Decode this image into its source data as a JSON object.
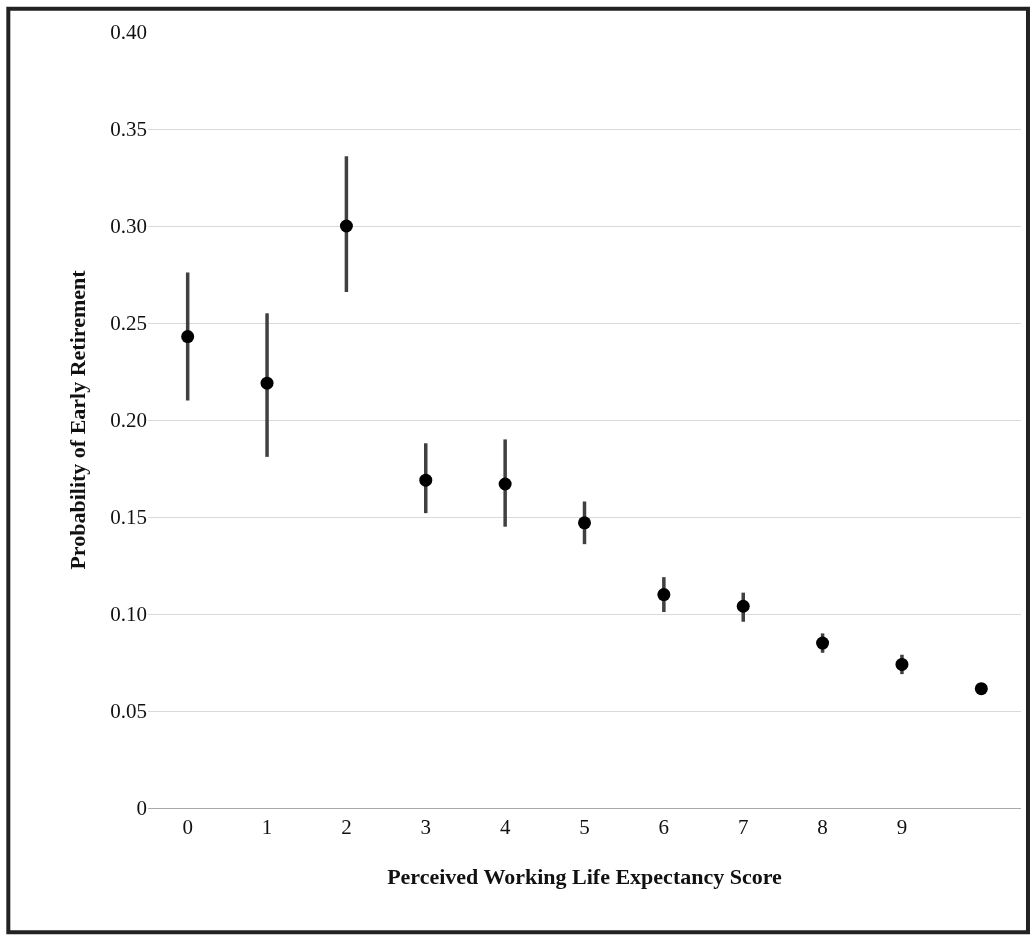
{
  "chart_data": {
    "type": "scatter",
    "xlabel": "Perceived Working Life Expectancy Score",
    "ylabel": "Probability of Early Retirement",
    "categories": [
      "0",
      "1",
      "2",
      "3",
      "4",
      "5",
      "6",
      "7",
      "8",
      "9",
      null
    ],
    "series": [
      {
        "color": "#000000",
        "values": [
          0.243,
          0.219,
          0.3,
          0.169,
          0.167,
          0.147,
          0.11,
          0.104,
          0.085,
          0.074,
          0.0615
        ],
        "errors": [
          [
            0.21,
            0.276
          ],
          [
            0.181,
            0.255
          ],
          [
            0.266,
            0.336
          ],
          [
            0.152,
            0.188
          ],
          [
            0.145,
            0.19
          ],
          [
            0.136,
            0.158
          ],
          [
            0.101,
            0.119
          ],
          [
            0.096,
            0.111
          ],
          [
            0.08,
            0.09
          ],
          [
            0.069,
            0.079
          ],
          null
        ]
      }
    ],
    "ylim": [
      0,
      0.4
    ],
    "yticks": [
      {
        "value": 0,
        "label": "0"
      },
      {
        "value": 0.05,
        "label": "0.05"
      },
      {
        "value": 0.1,
        "label": "0.10"
      },
      {
        "value": 0.15,
        "label": "0.15"
      },
      {
        "value": 0.2,
        "label": "0.20"
      },
      {
        "value": 0.25,
        "label": "0.25"
      },
      {
        "value": 0.3,
        "label": "0.30"
      },
      {
        "value": 0.35,
        "label": "0.35"
      },
      {
        "value": 0.4,
        "label": "0.40"
      }
    ],
    "grid": "y",
    "marker": "circle"
  }
}
